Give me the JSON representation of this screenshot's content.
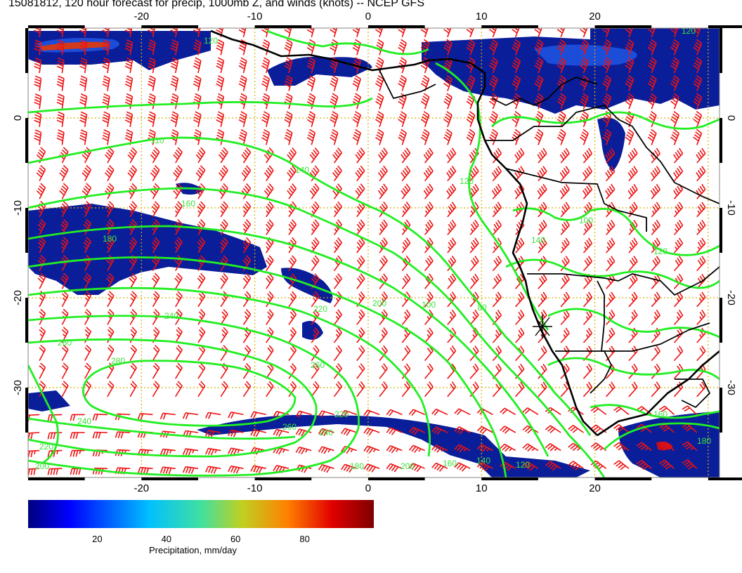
{
  "title": "15081812, 120 hour forecast for precip, 1000mb Z, and winds (knots) -- NCEP GFS",
  "colors": {
    "contour": "#22ee22",
    "barb": "#ee1111",
    "coast": "#000000",
    "graticule": "#d4b000",
    "precip_low": "#00007f",
    "precip_high": "#7f0000"
  },
  "map": {
    "lon_range": [
      -30,
      31
    ],
    "lat_range": [
      -40,
      10
    ],
    "lon_ticks_top": [
      "-20",
      "-10",
      "0",
      "10",
      "20"
    ],
    "lon_ticks_bottom": [
      "-20",
      "-10",
      "0",
      "10",
      "20"
    ],
    "lat_ticks": [
      "0",
      "-10",
      "-20",
      "-30"
    ],
    "grid": "dotted every 10 degrees"
  },
  "contours": {
    "field": "1000mb geopotential height",
    "labels": [
      "120",
      "120",
      "110",
      "140",
      "160",
      "180",
      "200",
      "220",
      "240",
      "260",
      "280",
      "260",
      "240",
      "220",
      "200",
      "180",
      "160",
      "140",
      "120",
      "100",
      "80",
      "120",
      "100",
      "120",
      "140",
      "160",
      "180",
      "200",
      "220",
      "240",
      "260"
    ]
  },
  "wind_barbs": {
    "units": "knots",
    "spacing_deg": 2
  },
  "colorbar": {
    "label": "Precipitation, mm/day",
    "ticks": [
      "20",
      "40",
      "60",
      "80"
    ],
    "range": [
      0,
      100
    ],
    "colormap": "jet"
  }
}
